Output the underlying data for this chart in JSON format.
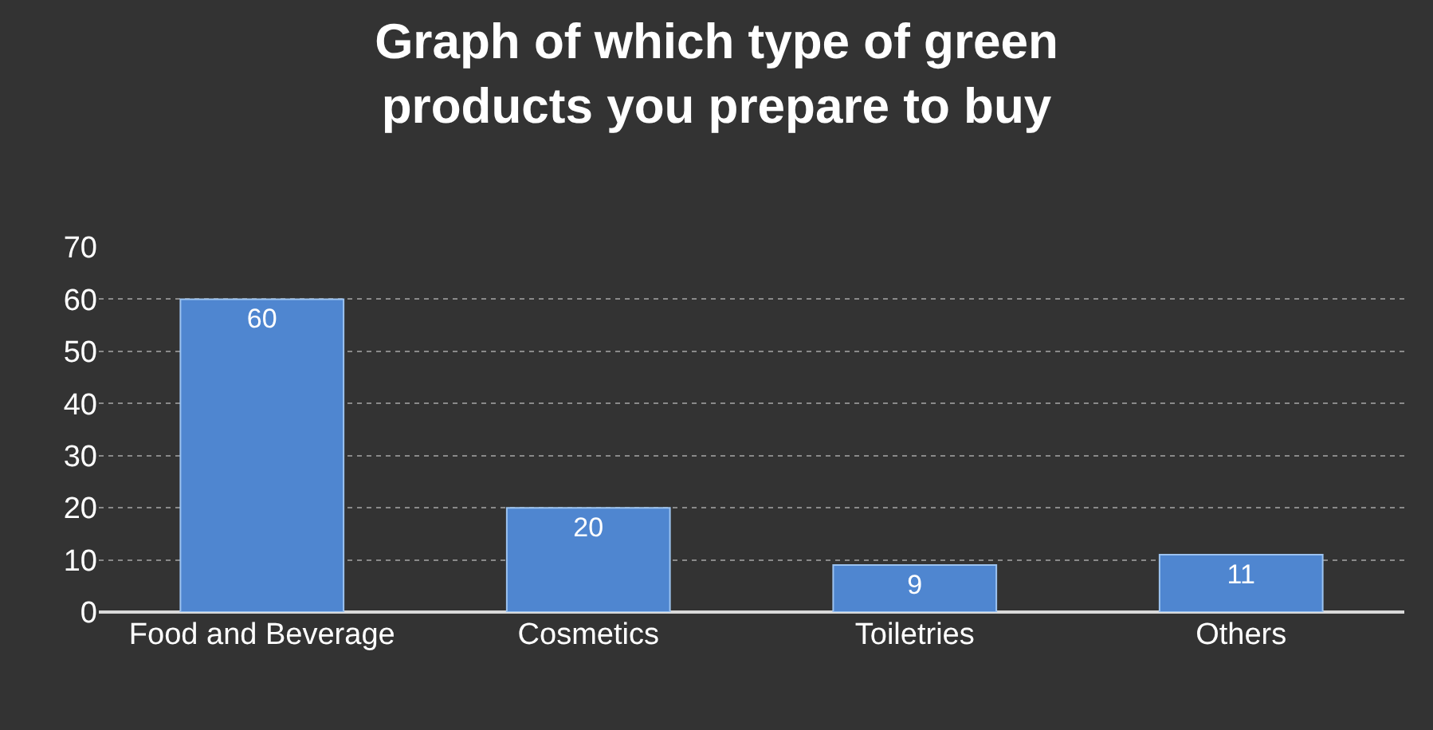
{
  "chart_data": {
    "type": "bar",
    "title": "Graph of which type of green products you prepare to buy",
    "categories": [
      "Food and Beverage",
      "Cosmetics",
      "Toiletries",
      "Others"
    ],
    "values": [
      60,
      20,
      9,
      11
    ],
    "color": "#4f86d0",
    "ylim": [
      0,
      70
    ],
    "yticks": [
      0,
      10,
      20,
      30,
      40,
      50,
      60,
      70
    ],
    "grid": "y",
    "data_labels": true
  }
}
